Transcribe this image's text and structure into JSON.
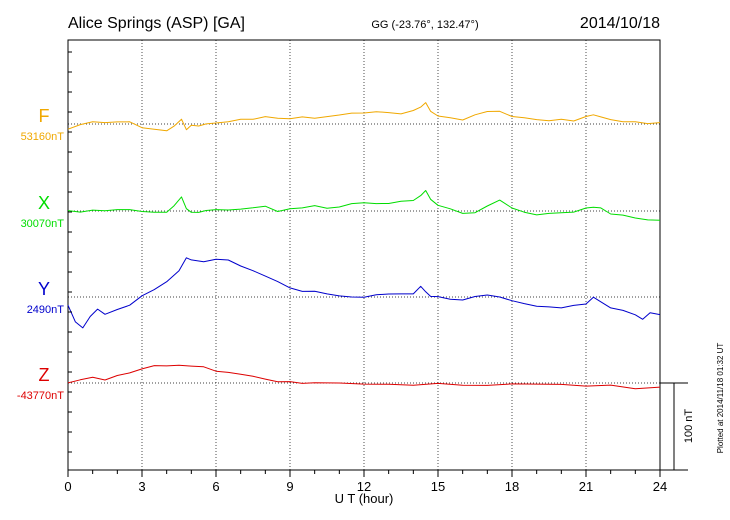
{
  "header": {
    "station": "Alice Springs (ASP)  [GA]",
    "coords": "GG (-23.76°, 132.47°)",
    "date": "2014/10/18"
  },
  "plotted_note": "Plotted at 2014/11/18 01:32 UT",
  "scale_label": "100 nT",
  "colors": {
    "F": "#f0a800",
    "X": "#00dd00",
    "Y": "#0000cc",
    "Z": "#dd0000"
  },
  "chart_data": {
    "type": "line",
    "xlabel": "U T (hour)",
    "xlim": [
      0,
      24
    ],
    "xticks": [
      "0",
      "3",
      "6",
      "9",
      "12",
      "15",
      "18",
      "21",
      "24"
    ],
    "scale_bar_nT": 100,
    "grid": true,
    "series": [
      {
        "name": "F",
        "baseline_label": "53160nT",
        "x": [
          0,
          0.5,
          1,
          1.5,
          2,
          2.5,
          3,
          3.5,
          4,
          4.3,
          4.6,
          4.8,
          5,
          5.3,
          5.6,
          6,
          6.5,
          7,
          7.5,
          8,
          8.5,
          9,
          9.5,
          10,
          10.5,
          11,
          11.5,
          12,
          12.5,
          13,
          13.5,
          14,
          14.3,
          14.5,
          14.7,
          15,
          15.5,
          16,
          16.5,
          17,
          17.5,
          18,
          18.5,
          19,
          19.5,
          20,
          20.5,
          21,
          21.3,
          21.6,
          22,
          22.5,
          23,
          23.5,
          24
        ],
        "values": [
          -6,
          -1,
          3,
          1,
          3,
          2,
          -4,
          -6,
          -8,
          -2,
          5,
          -6,
          -2,
          -2,
          0,
          1,
          3,
          5,
          6,
          8,
          7,
          6,
          8,
          7,
          8,
          11,
          12,
          13,
          14,
          13,
          12,
          15,
          20,
          24,
          15,
          9,
          7,
          5,
          10,
          15,
          14,
          9,
          7,
          5,
          4,
          5,
          4,
          8,
          11,
          8,
          5,
          3,
          2,
          1,
          1
        ]
      },
      {
        "name": "X",
        "baseline_label": "30070nT",
        "x": [
          0,
          0.5,
          1,
          1.5,
          2,
          2.5,
          3,
          3.5,
          4,
          4.3,
          4.6,
          4.8,
          5,
          5.3,
          5.6,
          6,
          6.5,
          7,
          7.5,
          8,
          8.5,
          9,
          9.5,
          10,
          10.5,
          11,
          11.5,
          12,
          12.5,
          13,
          13.5,
          14,
          14.3,
          14.5,
          14.7,
          15,
          15.5,
          16,
          16.5,
          17,
          17.5,
          18,
          18.5,
          19,
          19.5,
          20,
          20.5,
          21,
          21.3,
          21.6,
          22,
          22.5,
          23,
          23.5,
          24
        ],
        "values": [
          0,
          -1,
          1,
          0,
          2,
          1,
          0,
          -2,
          -1,
          6,
          16,
          3,
          -2,
          -1,
          0,
          2,
          1,
          2,
          4,
          5,
          0,
          2,
          4,
          6,
          3,
          5,
          8,
          10,
          8,
          9,
          11,
          12,
          18,
          23,
          14,
          6,
          3,
          -3,
          -2,
          6,
          12,
          4,
          -2,
          -4,
          -3,
          -2,
          -1,
          3,
          5,
          3,
          -3,
          -5,
          -8,
          -10,
          -11
        ]
      },
      {
        "name": "Y",
        "baseline_label": "2490nT",
        "x": [
          0,
          0.3,
          0.6,
          0.9,
          1.2,
          1.5,
          2,
          2.5,
          3,
          3.5,
          4,
          4.5,
          4.8,
          5,
          5.5,
          6,
          6.5,
          7,
          7.5,
          8,
          8.5,
          9,
          9.5,
          10,
          10.5,
          11,
          11.5,
          12,
          12.5,
          13,
          13.5,
          14,
          14.3,
          14.5,
          14.7,
          15,
          15.5,
          16,
          16.5,
          17,
          17.5,
          18,
          18.5,
          19,
          19.5,
          20,
          20.5,
          21,
          21.3,
          21.6,
          22,
          22.5,
          23,
          23.3,
          23.6,
          24
        ],
        "values": [
          -10,
          -28,
          -36,
          -22,
          -14,
          -20,
          -14,
          -10,
          2,
          8,
          18,
          30,
          45,
          43,
          40,
          44,
          42,
          36,
          30,
          24,
          18,
          10,
          7,
          6,
          4,
          1,
          0,
          0,
          2,
          4,
          3,
          4,
          12,
          6,
          1,
          0,
          -2,
          -4,
          1,
          2,
          0,
          -4,
          -8,
          -10,
          -12,
          -12,
          -10,
          -8,
          0,
          -6,
          -12,
          -16,
          -20,
          -26,
          -18,
          -20
        ]
      },
      {
        "name": "Z",
        "baseline_label": "-43770nT",
        "x": [
          0,
          0.5,
          1,
          1.5,
          2,
          2.5,
          3,
          3.5,
          4,
          4.5,
          5,
          5.5,
          6,
          6.5,
          7,
          7.5,
          8,
          8.5,
          9,
          9.5,
          10,
          11,
          12,
          13,
          14,
          15,
          16,
          17,
          18,
          19,
          20,
          21,
          22,
          23,
          24
        ],
        "values": [
          0,
          4,
          6,
          4,
          8,
          12,
          16,
          20,
          20,
          20,
          20,
          18,
          14,
          12,
          10,
          8,
          4,
          2,
          1,
          0,
          0,
          0,
          -1,
          -2,
          -2,
          -1,
          -2,
          -3,
          -1,
          -1,
          -2,
          -3,
          -3,
          -6,
          -5
        ]
      }
    ]
  }
}
